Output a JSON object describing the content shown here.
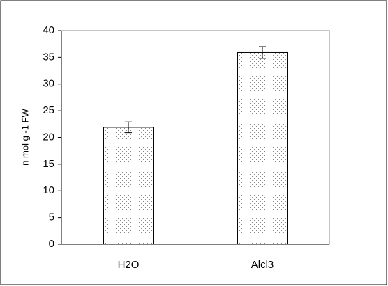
{
  "chart_data": {
    "type": "bar",
    "y_label": "n mol g -1 FW",
    "categories": [
      "H2O",
      "Alcl3"
    ],
    "values": [
      21.9,
      35.9
    ],
    "errors": [
      1.0,
      1.1
    ],
    "ylim": [
      0,
      40
    ],
    "yticks": [
      0,
      5,
      10,
      15,
      20,
      25,
      30,
      35,
      40
    ],
    "grid": false
  }
}
